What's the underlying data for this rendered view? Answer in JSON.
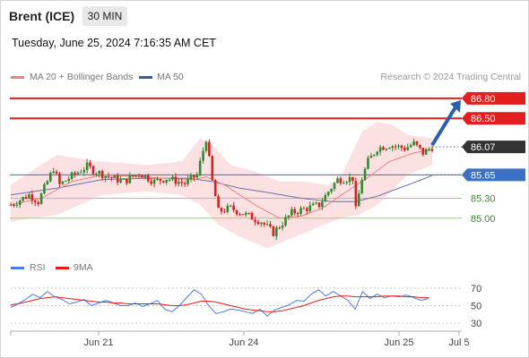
{
  "header": {
    "instrument": "Brent (ICE)",
    "interval": "30 MIN",
    "datetime": "Tuesday, June 25, 2024 7:16:35 AM CET"
  },
  "legend": {
    "ma20_label": "MA 20 + Bollinger Bands",
    "ma50_label": "MA 50",
    "copyright": "Research © 2024 Trading Central"
  },
  "rsi_legend": {
    "rsi_label": "RSI",
    "ma_label": "9MA"
  },
  "colors": {
    "resistance": "#e31e1e",
    "pivot": "#3a6fc4",
    "support": "#3a8a2a",
    "current": "#333333",
    "arrow": "#2d5fa8",
    "bollinger": "#fbdede",
    "ma20": "#f08080",
    "ma50": "#6a70a8",
    "candle_up": "#2e8b2e",
    "candle_down": "#d42020",
    "rsi": "#4a7de0",
    "rsi_ma": "#e01e1e"
  },
  "chart_data": [
    {
      "type": "candlestick",
      "ylim": [
        84.58,
        87.0
      ],
      "x_ticks": [
        "Jun 21",
        "Jun 24",
        "Jun 25",
        "Jul 5"
      ],
      "levels": [
        {
          "name": "resistance-2",
          "value": 86.8,
          "label": "86.80",
          "kind": "resistance"
        },
        {
          "name": "resistance-1",
          "value": 86.5,
          "label": "86.50",
          "kind": "resistance"
        },
        {
          "name": "current-price",
          "value": 86.07,
          "label": "86.07",
          "kind": "current"
        },
        {
          "name": "pivot",
          "value": 85.65,
          "label": "85.65",
          "kind": "pivot"
        },
        {
          "name": "support-1",
          "value": 85.3,
          "label": "85.30",
          "kind": "support"
        },
        {
          "name": "support-2",
          "value": 85.0,
          "label": "85.00",
          "kind": "support"
        }
      ],
      "forecast_target": 86.8,
      "anchors": [
        [
          0,
          85.2
        ],
        [
          6,
          85.35
        ],
        [
          9,
          85.25
        ],
        [
          14,
          85.75
        ],
        [
          16,
          85.5
        ],
        [
          19,
          85.6
        ],
        [
          25,
          85.78
        ],
        [
          27,
          85.72
        ],
        [
          32,
          85.62
        ],
        [
          37,
          85.55
        ],
        [
          42,
          85.68
        ],
        [
          47,
          85.55
        ],
        [
          51,
          85.6
        ],
        [
          57,
          85.52
        ],
        [
          61,
          85.65
        ],
        [
          64,
          86.2
        ],
        [
          66,
          85.55
        ],
        [
          68,
          85.1
        ],
        [
          72,
          85.15
        ],
        [
          77,
          85.05
        ],
        [
          82,
          84.95
        ],
        [
          86,
          84.78
        ],
        [
          89,
          84.93
        ],
        [
          92,
          85.08
        ],
        [
          97,
          85.15
        ],
        [
          101,
          85.2
        ],
        [
          104,
          85.4
        ],
        [
          107,
          85.58
        ],
        [
          112,
          85.6
        ],
        [
          113,
          85.12
        ],
        [
          115,
          85.6
        ],
        [
          117,
          85.85
        ],
        [
          120,
          86.05
        ],
        [
          124,
          86.1
        ],
        [
          129,
          86.05
        ],
        [
          132,
          86.12
        ],
        [
          135,
          85.98
        ],
        [
          138,
          86.07
        ]
      ],
      "ma20": [
        [
          0,
          85.2
        ],
        [
          10,
          85.3
        ],
        [
          20,
          85.55
        ],
        [
          30,
          85.65
        ],
        [
          40,
          85.63
        ],
        [
          50,
          85.6
        ],
        [
          60,
          85.58
        ],
        [
          64,
          85.62
        ],
        [
          70,
          85.5
        ],
        [
          80,
          85.2
        ],
        [
          88,
          85.0
        ],
        [
          95,
          85.03
        ],
        [
          102,
          85.15
        ],
        [
          110,
          85.4
        ],
        [
          116,
          85.58
        ],
        [
          124,
          85.85
        ],
        [
          132,
          85.98
        ],
        [
          138,
          86.03
        ]
      ],
      "ma50": [
        [
          0,
          85.35
        ],
        [
          15,
          85.45
        ],
        [
          30,
          85.58
        ],
        [
          45,
          85.6
        ],
        [
          58,
          85.6
        ],
        [
          66,
          85.55
        ],
        [
          75,
          85.45
        ],
        [
          85,
          85.38
        ],
        [
          95,
          85.3
        ],
        [
          105,
          85.25
        ],
        [
          113,
          85.25
        ],
        [
          120,
          85.33
        ],
        [
          130,
          85.5
        ],
        [
          138,
          85.64
        ]
      ],
      "bollinger_upper": [
        [
          0,
          85.5
        ],
        [
          15,
          85.95
        ],
        [
          30,
          85.85
        ],
        [
          45,
          85.8
        ],
        [
          56,
          85.85
        ],
        [
          62,
          86.2
        ],
        [
          66,
          86.1
        ],
        [
          72,
          85.8
        ],
        [
          80,
          85.7
        ],
        [
          88,
          85.55
        ],
        [
          96,
          85.55
        ],
        [
          104,
          85.5
        ],
        [
          108,
          85.6
        ],
        [
          115,
          86.3
        ],
        [
          120,
          86.45
        ],
        [
          125,
          86.4
        ],
        [
          130,
          86.25
        ],
        [
          138,
          86.2
        ]
      ],
      "bollinger_lower": [
        [
          0,
          84.95
        ],
        [
          15,
          85.05
        ],
        [
          30,
          85.35
        ],
        [
          45,
          85.4
        ],
        [
          56,
          85.35
        ],
        [
          62,
          85.2
        ],
        [
          68,
          84.9
        ],
        [
          76,
          84.7
        ],
        [
          84,
          84.55
        ],
        [
          92,
          84.7
        ],
        [
          100,
          84.85
        ],
        [
          108,
          85.0
        ],
        [
          114,
          85.05
        ],
        [
          120,
          85.2
        ],
        [
          130,
          85.65
        ],
        [
          138,
          85.8
        ]
      ]
    },
    {
      "type": "line",
      "title": "",
      "ylim": [
        25,
        80
      ],
      "y_ticks": [
        30,
        50,
        70
      ],
      "series": [
        {
          "name": "RSI",
          "values": [
            48,
            52,
            57,
            63,
            59,
            66,
            60,
            57,
            52,
            54,
            57,
            50,
            53,
            56,
            53,
            50,
            50,
            53,
            49,
            52,
            56,
            46,
            43,
            50,
            59,
            68,
            63,
            50,
            41,
            43,
            46,
            45,
            43,
            41,
            46,
            38,
            45,
            48,
            51,
            56,
            55,
            63,
            68,
            61,
            66,
            61,
            56,
            46,
            66,
            58,
            63,
            59,
            61,
            60,
            62,
            59,
            56,
            58
          ]
        },
        {
          "name": "9MA",
          "values": [
            51,
            52,
            54,
            56,
            58,
            59,
            60,
            59,
            58,
            57,
            56,
            55,
            54,
            54,
            53,
            53,
            52,
            52,
            52,
            52,
            52,
            51,
            50,
            50,
            51,
            53,
            55,
            55,
            54,
            52,
            50,
            48,
            46,
            45,
            44,
            43,
            43,
            44,
            46,
            48,
            50,
            53,
            56,
            58,
            60,
            61,
            61,
            60,
            60,
            60,
            60,
            61,
            61,
            61,
            60,
            60,
            59,
            59
          ]
        }
      ]
    }
  ]
}
